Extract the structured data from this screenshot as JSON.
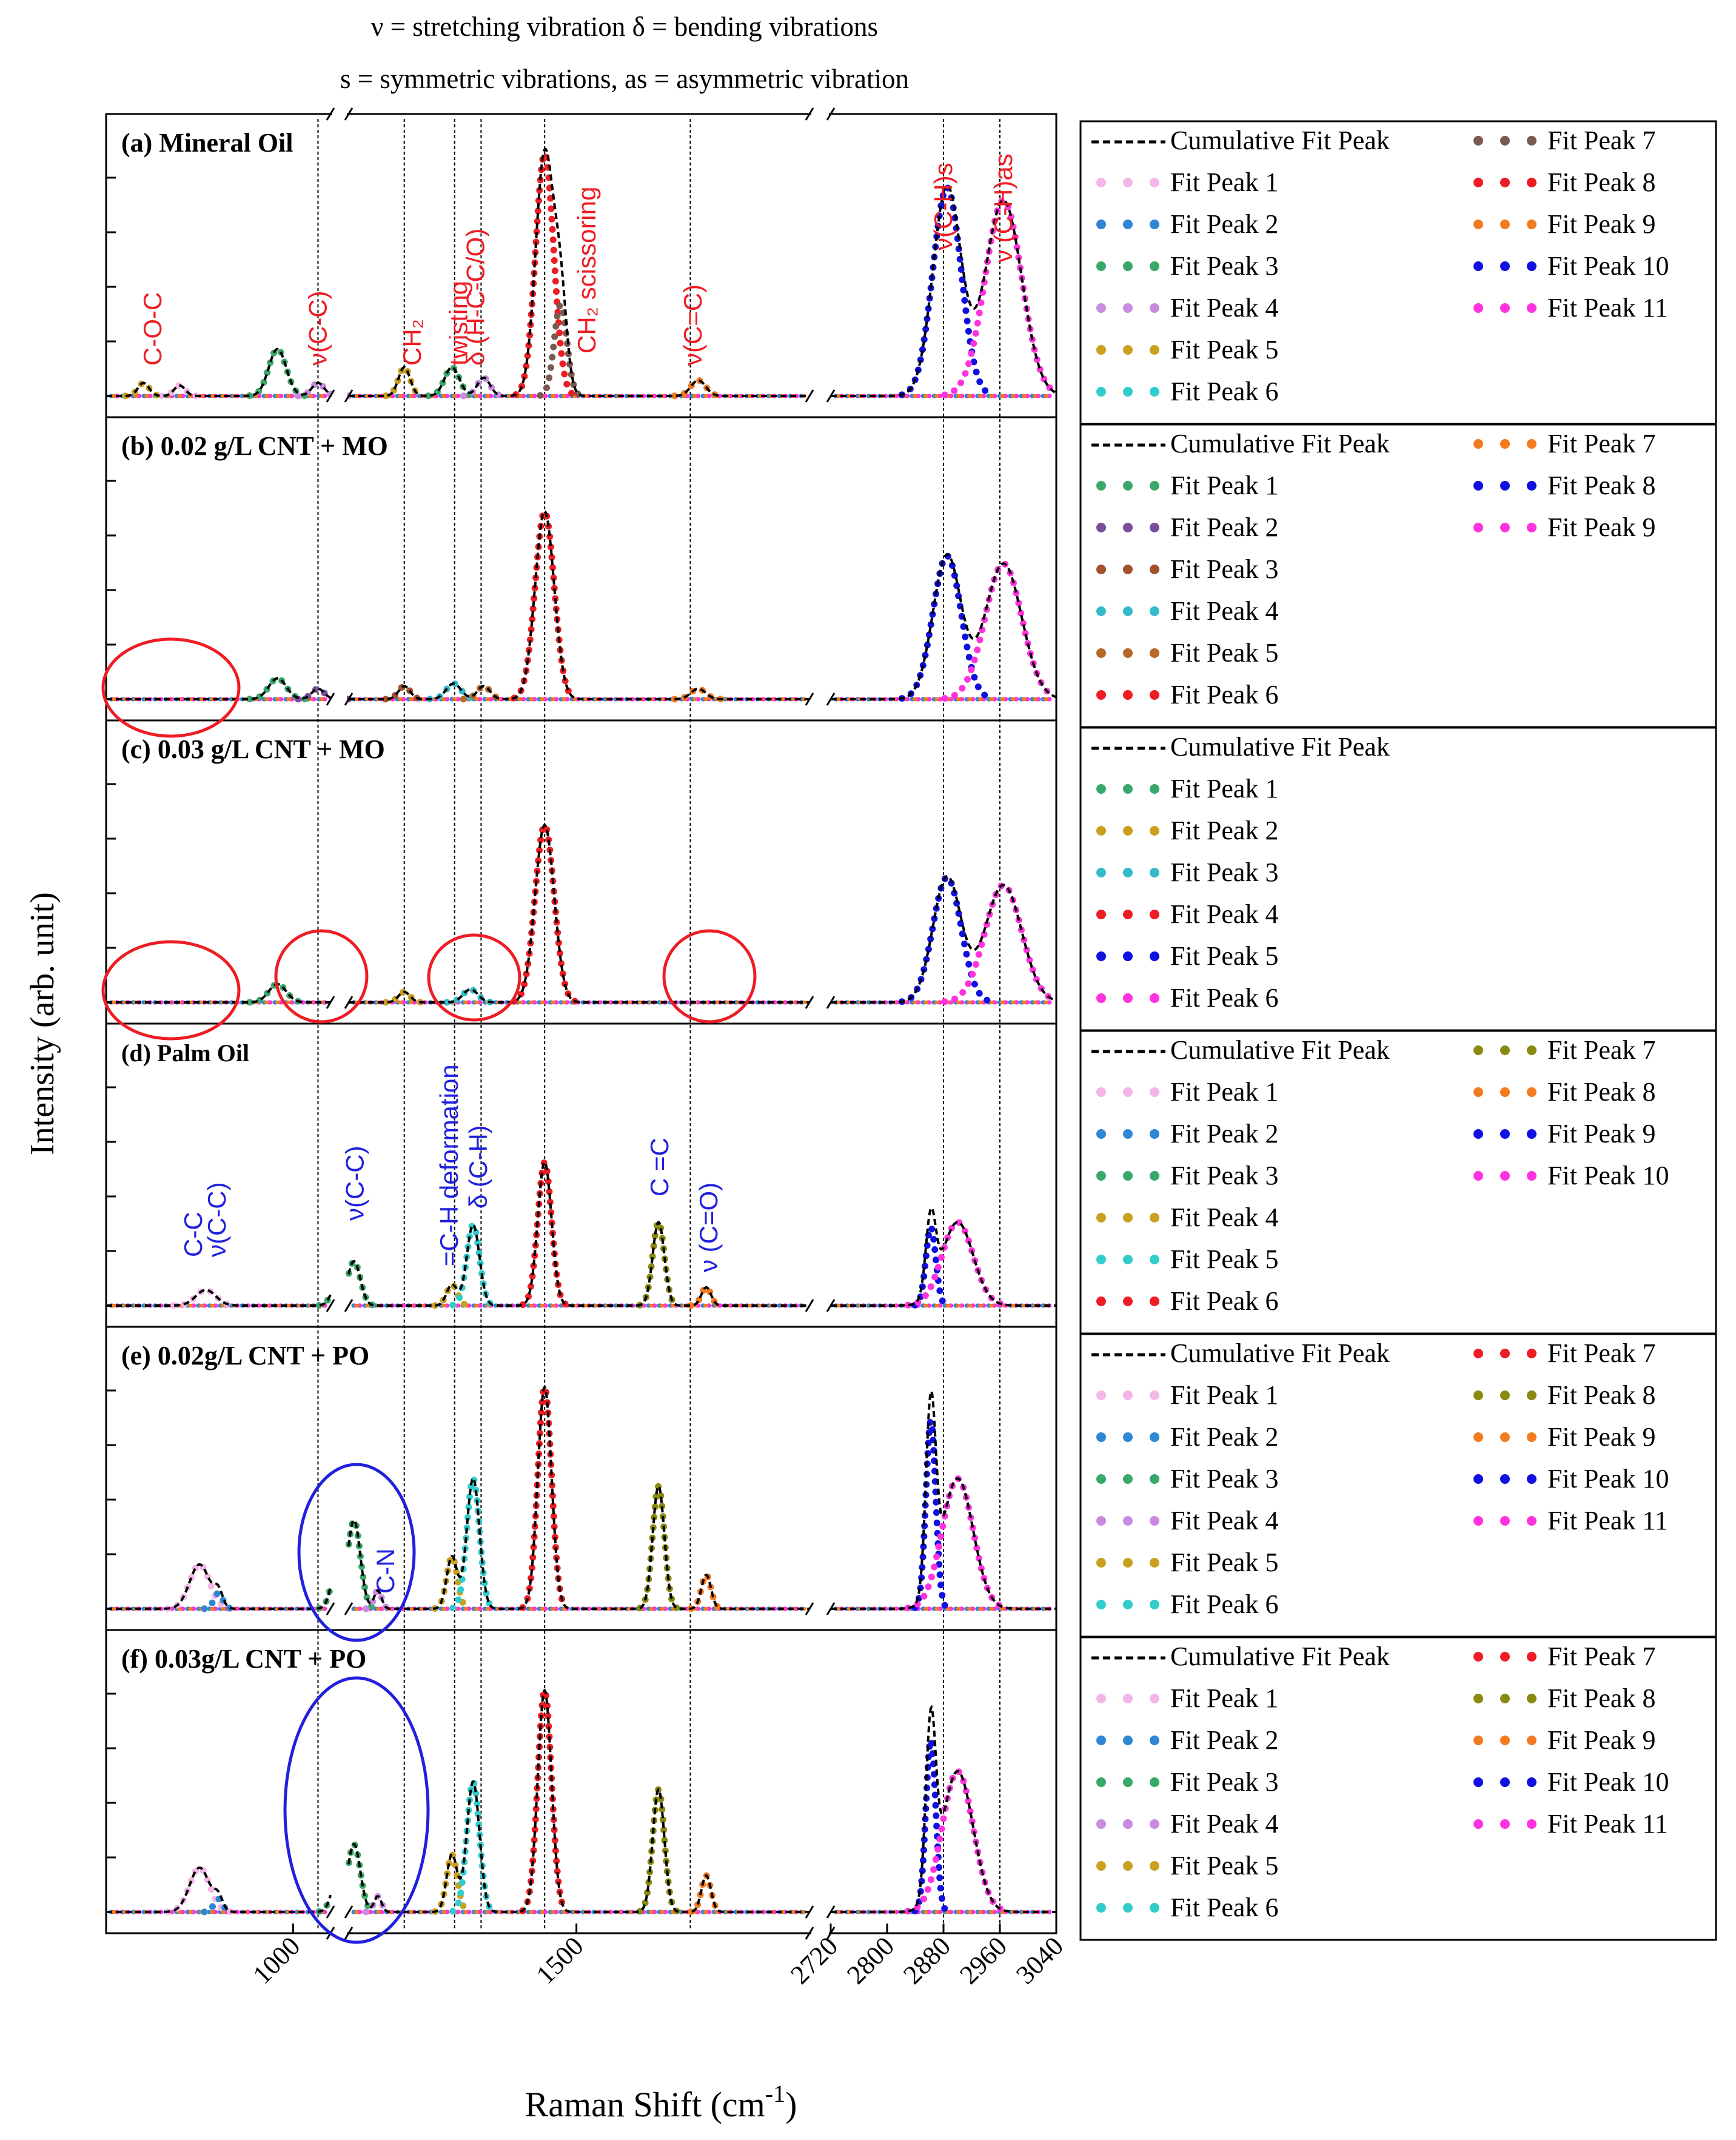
{
  "chart_data": {
    "type": "line",
    "header_line1": "ν = stretching vibration δ = bending vibrations",
    "header_line2": "s = symmetric vibrations, as = asymmetric vibration",
    "ylabel": "Intensity (arb. unit)",
    "xlabel_main": "Raman Shift (cm",
    "xlabel_sup": "-1",
    "xlabel_close": ")",
    "x_axis_broken": true,
    "x_segments": [
      {
        "range": [
          700,
          1060
        ]
      },
      {
        "range": [
          1070,
          1940
        ]
      },
      {
        "range": [
          2720,
          3040
        ]
      }
    ],
    "xticks": [
      {
        "value": 1000,
        "label": "1000"
      },
      {
        "value": 1500,
        "label": "1500"
      },
      {
        "value": 2720,
        "label": "2720"
      },
      {
        "value": 2800,
        "label": "2800"
      },
      {
        "value": 2880,
        "label": "2880"
      },
      {
        "value": 2960,
        "label": "2960"
      },
      {
        "value": 3040,
        "label": "3040"
      }
    ],
    "reference_lines_cm": [
      1040,
      1175,
      1270,
      1320,
      1440,
      1715,
      2880,
      2960
    ],
    "panels": [
      {
        "label": "(a) Mineral Oil",
        "legend_cumulative": "Cumulative Fit Peak",
        "legend_peaks": [
          "Fit Peak 1",
          "Fit Peak 2",
          "Fit Peak 3",
          "Fit Peak 4",
          "Fit Peak 5",
          "Fit Peak 6",
          "Fit Peak 7",
          "Fit Peak 8",
          "Fit Peak 9",
          "Fit Peak 10",
          "Fit Peak 11"
        ],
        "legend_colors": [
          "#f4b6e8",
          "#2f86d4",
          "#3aa86a",
          "#c98be0",
          "#c9a020",
          "#33cccc",
          "#7a5a50",
          "#ee1c24",
          "#f47a20",
          "#1010e0",
          "#ff33dd"
        ],
        "peaks": [
          {
            "x": 760,
            "h": 0.05,
            "w": 9,
            "c": 4
          },
          {
            "x": 818,
            "h": 0.04,
            "w": 9,
            "c": 0
          },
          {
            "x": 975,
            "h": 0.18,
            "w": 14,
            "c": 2
          },
          {
            "x": 1040,
            "h": 0.05,
            "w": 10,
            "c": 3
          },
          {
            "x": 1175,
            "h": 0.11,
            "w": 11,
            "c": 4
          },
          {
            "x": 1265,
            "h": 0.11,
            "w": 14,
            "c": 2
          },
          {
            "x": 1325,
            "h": 0.07,
            "w": 12,
            "c": 3
          },
          {
            "x": 1440,
            "h": 0.93,
            "w": 17,
            "c": 7
          },
          {
            "x": 1470,
            "h": 0.35,
            "w": 12,
            "c": 6
          },
          {
            "x": 1730,
            "h": 0.06,
            "w": 14,
            "c": 8
          },
          {
            "x": 2885,
            "h": 0.8,
            "w": 20,
            "c": 9
          },
          {
            "x": 2965,
            "h": 0.75,
            "w": 26,
            "c": 10
          }
        ],
        "annotations": [
          {
            "text": "C-O-C",
            "x": 775,
            "yfrac": 0.1,
            "color": "#ee1c24",
            "vertical": true
          },
          {
            "text": "ν(C-C)",
            "x": 1040,
            "yfrac": 0.1,
            "color": "#ee1c24",
            "vertical": true
          },
          {
            "text": "CH₂",
            "x": 1190,
            "yfrac": 0.1,
            "color": "#ee1c24",
            "vertical": true
          },
          {
            "text": "twisting",
            "x": 1278,
            "yfrac": 0.1,
            "color": "#ee1c24",
            "vertical": true
          },
          {
            "text": "δ (H-C-C/O)",
            "x": 1310,
            "yfrac": 0.1,
            "color": "#ee1c24",
            "vertical": true
          },
          {
            "text": "CH₂ scissoring",
            "x": 1520,
            "yfrac": 0.14,
            "color": "#ee1c24",
            "vertical": true
          },
          {
            "text": "ν(C=C)",
            "x": 1720,
            "yfrac": 0.1,
            "color": "#ee1c24",
            "vertical": true
          },
          {
            "text": "ν(C-H)s",
            "x": 2880,
            "yfrac": 0.48,
            "color": "#ee1c24",
            "vertical": true
          },
          {
            "text": "ν (C-H)as",
            "x": 2965,
            "yfrac": 0.44,
            "color": "#ee1c24",
            "vertical": true
          }
        ]
      },
      {
        "label": "(b) 0.02 g/L CNT + MO",
        "legend_cumulative": "Cumulative Fit Peak",
        "legend_peaks": [
          "Fit Peak 1",
          "Fit Peak 2",
          "Fit Peak 3",
          "Fit Peak 4",
          "Fit Peak 5",
          "Fit Peak 6",
          "Fit Peak 7",
          "Fit Peak 8",
          "Fit Peak 9"
        ],
        "legend_colors": [
          "#3aa86a",
          "#7a4e9c",
          "#a0522d",
          "#33bbcc",
          "#b56a2a",
          "#ee1c24",
          "#f47a20",
          "#1010e0",
          "#ff33dd"
        ],
        "peaks": [
          {
            "x": 975,
            "h": 0.08,
            "w": 14,
            "c": 0
          },
          {
            "x": 1040,
            "h": 0.04,
            "w": 10,
            "c": 1
          },
          {
            "x": 1175,
            "h": 0.05,
            "w": 11,
            "c": 2
          },
          {
            "x": 1268,
            "h": 0.06,
            "w": 14,
            "c": 3
          },
          {
            "x": 1325,
            "h": 0.05,
            "w": 12,
            "c": 4
          },
          {
            "x": 1440,
            "h": 0.72,
            "w": 18,
            "c": 5
          },
          {
            "x": 1730,
            "h": 0.04,
            "w": 14,
            "c": 6
          },
          {
            "x": 2885,
            "h": 0.55,
            "w": 20,
            "c": 7
          },
          {
            "x": 2965,
            "h": 0.52,
            "w": 26,
            "c": 8
          }
        ],
        "annotations": []
      },
      {
        "label": "(c) 0.03 g/L CNT + MO",
        "legend_cumulative": "Cumulative Fit Peak",
        "legend_peaks": [
          "Fit Peak 1",
          "Fit Peak 2",
          "Fit Peak 3",
          "Fit Peak 4",
          "Fit Peak 5",
          "Fit Peak 6"
        ],
        "legend_colors": [
          "#3aa86a",
          "#c9a020",
          "#33bbcc",
          "#ee1c24",
          "#1010e0",
          "#ff33dd"
        ],
        "peaks": [
          {
            "x": 975,
            "h": 0.07,
            "w": 14,
            "c": 0
          },
          {
            "x": 1175,
            "h": 0.04,
            "w": 11,
            "c": 1
          },
          {
            "x": 1300,
            "h": 0.05,
            "w": 14,
            "c": 2
          },
          {
            "x": 1440,
            "h": 0.68,
            "w": 18,
            "c": 3
          },
          {
            "x": 2885,
            "h": 0.48,
            "w": 20,
            "c": 4
          },
          {
            "x": 2965,
            "h": 0.45,
            "w": 26,
            "c": 5
          }
        ],
        "annotations": []
      },
      {
        "label": "(d) Palm Oil",
        "legend_cumulative": "Cumulative Fit Peak",
        "legend_peaks": [
          "Fit Peak 1",
          "Fit Peak 2",
          "Fit Peak 3",
          "Fit Peak 4",
          "Fit Peak 5",
          "Fit Peak 6",
          "Fit Peak 7",
          "Fit Peak 8",
          "Fit Peak 9",
          "Fit Peak 10"
        ],
        "legend_colors": [
          "#f4b6e8",
          "#2f86d4",
          "#3aa86a",
          "#c9a020",
          "#33cccc",
          "#ee1c24",
          "#8a8a10",
          "#f47a20",
          "#1010e0",
          "#ff33dd"
        ],
        "peaks": [
          {
            "x": 860,
            "h": 0.06,
            "w": 16,
            "c": 0
          },
          {
            "x": 1080,
            "h": 0.17,
            "w": 12,
            "c": 2
          },
          {
            "x": 1265,
            "h": 0.08,
            "w": 10,
            "c": 3
          },
          {
            "x": 1305,
            "h": 0.31,
            "w": 12,
            "c": 4
          },
          {
            "x": 1440,
            "h": 0.55,
            "w": 13,
            "c": 5
          },
          {
            "x": 1655,
            "h": 0.32,
            "w": 11,
            "c": 6
          },
          {
            "x": 1745,
            "h": 0.07,
            "w": 9,
            "c": 7
          },
          {
            "x": 2862,
            "h": 0.3,
            "w": 7,
            "c": 8
          },
          {
            "x": 2900,
            "h": 0.32,
            "w": 22,
            "c": 9
          }
        ],
        "annotations": [
          {
            "text": "C-C",
            "x": 840,
            "yfrac": 0.16,
            "color": "#2020dd",
            "vertical": true
          },
          {
            "text": "ν(C-C)",
            "x": 878,
            "yfrac": 0.16,
            "color": "#2020dd",
            "vertical": true
          },
          {
            "text": "ν(C-C)",
            "x": 1082,
            "yfrac": 0.28,
            "color": "#2020dd",
            "vertical": true
          },
          {
            "text": "=C-H deformation",
            "x": 1260,
            "yfrac": 0.13,
            "color": "#2020dd",
            "vertical": true
          },
          {
            "text": "δ (C-H)",
            "x": 1315,
            "yfrac": 0.32,
            "color": "#2020dd",
            "vertical": true
          },
          {
            "text": "C =C",
            "x": 1657,
            "yfrac": 0.36,
            "color": "#2020dd",
            "vertical": true
          },
          {
            "text": "ν (C=O)",
            "x": 1750,
            "yfrac": 0.11,
            "color": "#2020dd",
            "vertical": true
          }
        ]
      },
      {
        "label": "(e) 0.02g/L CNT + PO",
        "legend_cumulative": "Cumulative Fit Peak",
        "legend_peaks": [
          "Fit Peak 1",
          "Fit Peak 2",
          "Fit Peak 3",
          "Fit Peak 4",
          "Fit Peak 5",
          "Fit Peak 6",
          "Fit Peak 7",
          "Fit Peak 8",
          "Fit Peak 9",
          "Fit Peak 10",
          "Fit Peak 11"
        ],
        "legend_colors": [
          "#f4b6e8",
          "#2f86d4",
          "#3aa86a",
          "#c98be0",
          "#c9a020",
          "#33cccc",
          "#ee1c24",
          "#8a8a10",
          "#f47a20",
          "#1010e0",
          "#ff33dd"
        ],
        "peaks": [
          {
            "x": 850,
            "h": 0.17,
            "w": 16,
            "c": 0
          },
          {
            "x": 880,
            "h": 0.06,
            "w": 7,
            "c": 1
          },
          {
            "x": 1080,
            "h": 0.34,
            "w": 12,
            "c": 2
          },
          {
            "x": 1125,
            "h": 0.07,
            "w": 7,
            "c": 3
          },
          {
            "x": 1265,
            "h": 0.2,
            "w": 10,
            "c": 4
          },
          {
            "x": 1305,
            "h": 0.5,
            "w": 12,
            "c": 5
          },
          {
            "x": 1440,
            "h": 0.85,
            "w": 13,
            "c": 6
          },
          {
            "x": 1655,
            "h": 0.47,
            "w": 11,
            "c": 7
          },
          {
            "x": 1745,
            "h": 0.13,
            "w": 9,
            "c": 8
          },
          {
            "x": 2862,
            "h": 0.72,
            "w": 7,
            "c": 9
          },
          {
            "x": 2900,
            "h": 0.5,
            "w": 22,
            "c": 10
          }
        ],
        "annotations": [
          {
            "text": "C-N",
            "x": 1140,
            "yfrac": 0.05,
            "color": "#2020dd",
            "vertical": true
          }
        ]
      },
      {
        "label": "(f) 0.03g/L CNT + PO",
        "legend_cumulative": "Cumulative Fit Peak",
        "legend_peaks": [
          "Fit Peak 1",
          "Fit Peak 2",
          "Fit Peak 3",
          "Fit Peak 4",
          "Fit Peak 5",
          "Fit Peak 6",
          "Fit Peak 7",
          "Fit Peak 8",
          "Fit Peak 9",
          "Fit Peak 10",
          "Fit Peak 11"
        ],
        "legend_colors": [
          "#f4b6e8",
          "#2f86d4",
          "#3aa86a",
          "#c98be0",
          "#c9a020",
          "#33cccc",
          "#ee1c24",
          "#8a8a10",
          "#f47a20",
          "#1010e0",
          "#ff33dd"
        ],
        "peaks": [
          {
            "x": 850,
            "h": 0.17,
            "w": 16,
            "c": 0
          },
          {
            "x": 880,
            "h": 0.05,
            "w": 7,
            "c": 1
          },
          {
            "x": 1080,
            "h": 0.26,
            "w": 12,
            "c": 2
          },
          {
            "x": 1125,
            "h": 0.06,
            "w": 7,
            "c": 3
          },
          {
            "x": 1265,
            "h": 0.22,
            "w": 10,
            "c": 4
          },
          {
            "x": 1305,
            "h": 0.5,
            "w": 12,
            "c": 5
          },
          {
            "x": 1440,
            "h": 0.85,
            "w": 13,
            "c": 6
          },
          {
            "x": 1655,
            "h": 0.47,
            "w": 11,
            "c": 7
          },
          {
            "x": 1745,
            "h": 0.14,
            "w": 9,
            "c": 8
          },
          {
            "x": 2862,
            "h": 0.66,
            "w": 7,
            "c": 9
          },
          {
            "x": 2900,
            "h": 0.54,
            "w": 22,
            "c": 10
          }
        ],
        "annotations": []
      }
    ]
  }
}
